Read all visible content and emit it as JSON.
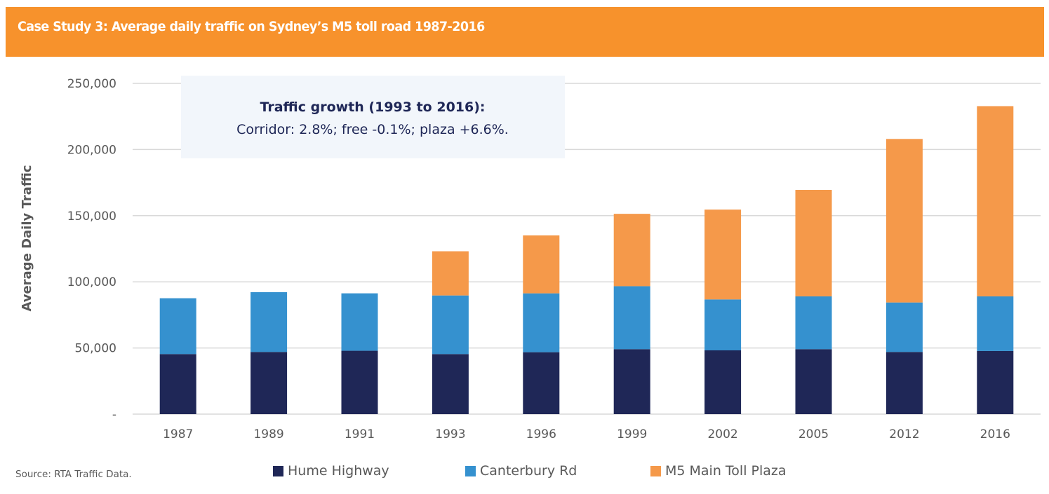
{
  "header": {
    "title": "Case Study 3: Average daily traffic on Sydney’s M5 toll road 1987-2016"
  },
  "callout": {
    "heading": "Traffic growth (1993 to 2016):",
    "body": "Corridor: 2.8%; free -0.1%; plaza +6.6%."
  },
  "source": "Source: RTA Traffic Data.",
  "colors": {
    "banner": "#f7922c",
    "hume": "#1f2757",
    "canterbury": "#3591cf",
    "m5": "#f5994a",
    "grid": "#d9d9d9"
  },
  "chart_data": {
    "type": "bar",
    "stacked": true,
    "title": "Case Study 3: Average daily traffic on Sydney’s M5 toll road 1987-2016",
    "xlabel": "",
    "ylabel": "Average Daily Traffic",
    "ylim": [
      0,
      250000
    ],
    "yticks": [
      0,
      50000,
      100000,
      150000,
      200000,
      250000
    ],
    "ytick_labels": [
      "-",
      "50,000",
      "100,000",
      "150,000",
      "200,000",
      "250,000"
    ],
    "grid": true,
    "legend_position": "bottom",
    "categories": [
      "1987",
      "1989",
      "1991",
      "1993",
      "1996",
      "1999",
      "2002",
      "2005",
      "2012",
      "2016"
    ],
    "series": [
      {
        "name": "Hume Highway",
        "color": "#1f2757",
        "values": [
          45400,
          47000,
          47900,
          45400,
          46800,
          49100,
          48200,
          49100,
          47000,
          47700
        ]
      },
      {
        "name": "Canterbury Rd",
        "color": "#3591cf",
        "values": [
          42200,
          45200,
          43400,
          44300,
          44500,
          47600,
          38500,
          39900,
          37400,
          41300
        ]
      },
      {
        "name": "M5 Main Toll Plaza",
        "color": "#f5994a",
        "values": [
          0,
          0,
          0,
          33400,
          43800,
          54700,
          67900,
          80500,
          123600,
          143800
        ]
      }
    ]
  }
}
